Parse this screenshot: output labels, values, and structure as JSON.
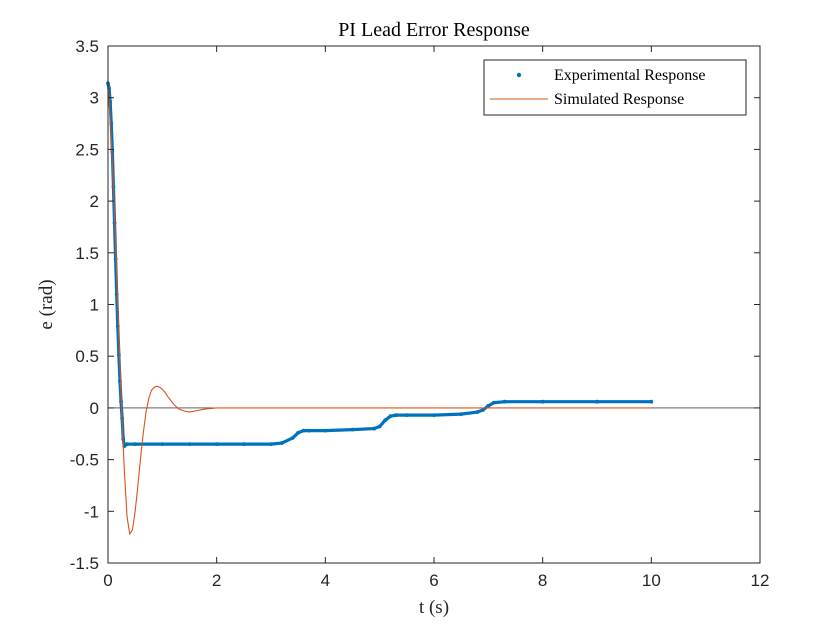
{
  "chart_data": {
    "type": "line",
    "title": "PI Lead Error Response",
    "xlabel": "t (s)",
    "ylabel": "e (rad)",
    "xlim": [
      0,
      12
    ],
    "ylim": [
      -1.5,
      3.5
    ],
    "xticks": [
      0,
      2,
      4,
      6,
      8,
      10,
      12
    ],
    "yticks": [
      -1.5,
      -1,
      -0.5,
      0,
      0.5,
      1,
      1.5,
      2,
      2.5,
      3,
      3.5
    ],
    "xtick_labels": [
      "0",
      "2",
      "4",
      "6",
      "8",
      "10",
      "12"
    ],
    "ytick_labels": [
      "-1.5",
      "-1",
      "-0.5",
      "0",
      "0.5",
      "1",
      "1.5",
      "2",
      "2.5",
      "3",
      "3.5"
    ],
    "zero_line": true,
    "grid": false,
    "legend_position": "top-right",
    "series": [
      {
        "name": "Experimental Response",
        "style": "markers",
        "color": "#0072BD",
        "x": [
          0.0,
          0.02,
          0.04,
          0.06,
          0.08,
          0.1,
          0.12,
          0.14,
          0.16,
          0.18,
          0.2,
          0.22,
          0.24,
          0.26,
          0.28,
          0.3,
          0.35,
          0.5,
          1.0,
          1.5,
          2.0,
          2.5,
          3.0,
          3.2,
          3.4,
          3.5,
          3.6,
          3.7,
          4.0,
          4.5,
          4.9,
          5.0,
          5.1,
          5.2,
          5.3,
          5.5,
          6.0,
          6.5,
          6.8,
          6.9,
          7.0,
          7.1,
          7.3,
          8.0,
          9.0,
          10.0
        ],
        "y": [
          3.14,
          3.09,
          2.96,
          2.75,
          2.48,
          2.14,
          1.79,
          1.44,
          1.1,
          0.79,
          0.51,
          0.26,
          0.06,
          -0.1,
          -0.3,
          -0.37,
          -0.35,
          -0.35,
          -0.35,
          -0.35,
          -0.35,
          -0.35,
          -0.35,
          -0.34,
          -0.29,
          -0.24,
          -0.22,
          -0.22,
          -0.22,
          -0.21,
          -0.2,
          -0.18,
          -0.12,
          -0.08,
          -0.07,
          -0.07,
          -0.07,
          -0.06,
          -0.04,
          -0.02,
          0.02,
          0.05,
          0.06,
          0.06,
          0.06,
          0.06
        ]
      },
      {
        "name": "Simulated Response",
        "style": "line",
        "color": "#D95319",
        "x": [
          0.0,
          0.05,
          0.1,
          0.15,
          0.2,
          0.25,
          0.3,
          0.35,
          0.4,
          0.45,
          0.5,
          0.55,
          0.6,
          0.65,
          0.7,
          0.75,
          0.8,
          0.85,
          0.9,
          0.95,
          1.0,
          1.05,
          1.1,
          1.2,
          1.3,
          1.4,
          1.5,
          1.6,
          1.7,
          1.8,
          2.0,
          2.2,
          2.5,
          3.0,
          4.0,
          6.0,
          8.0,
          10.0
        ],
        "y": [
          3.14,
          2.7,
          2.15,
          1.45,
          0.7,
          0.0,
          -0.6,
          -1.05,
          -1.22,
          -1.18,
          -1.0,
          -0.75,
          -0.48,
          -0.24,
          -0.04,
          0.09,
          0.17,
          0.2,
          0.21,
          0.2,
          0.18,
          0.15,
          0.11,
          0.04,
          -0.01,
          -0.03,
          -0.04,
          -0.03,
          -0.02,
          -0.01,
          0.0,
          0.0,
          0.0,
          0.0,
          0.0,
          0.0,
          0.0,
          0.0
        ]
      }
    ]
  }
}
